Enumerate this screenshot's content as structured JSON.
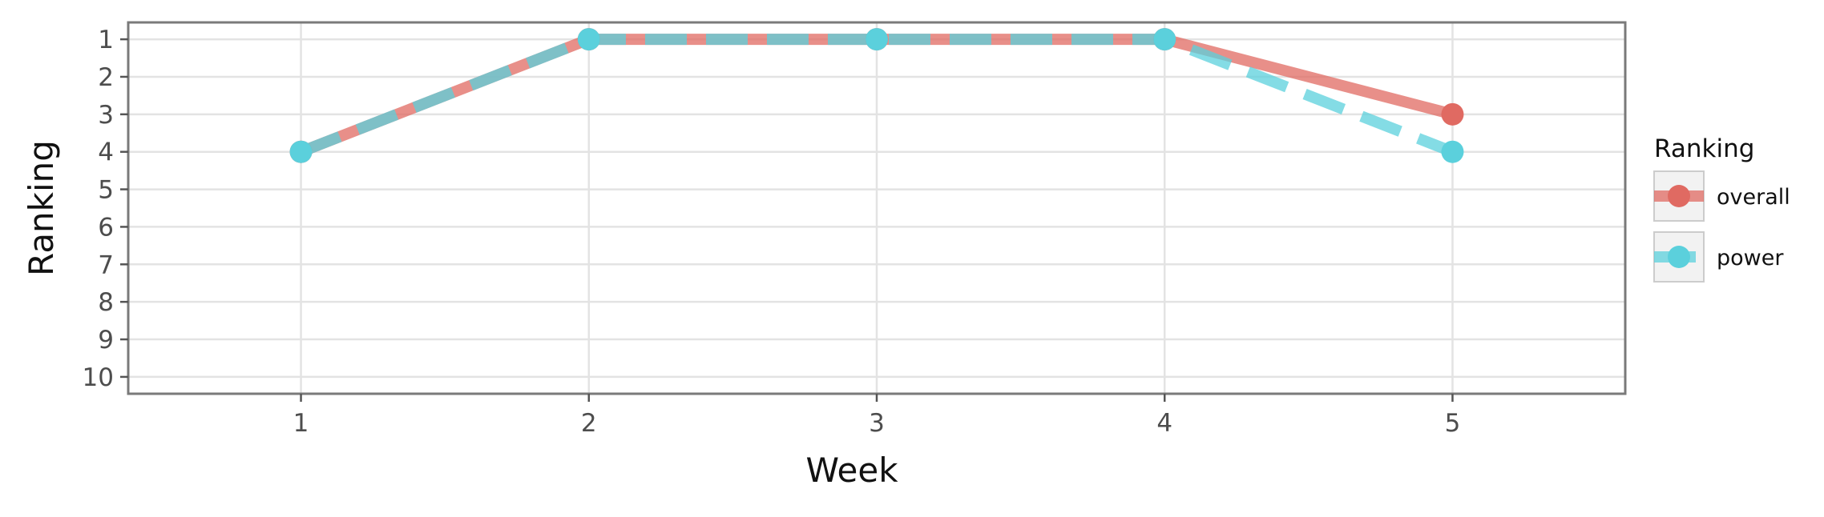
{
  "chart_data": {
    "type": "line",
    "title": "",
    "xlabel": "Week",
    "ylabel": "Ranking",
    "x": [
      1,
      2,
      3,
      4,
      5
    ],
    "x_ticks": [
      "1",
      "2",
      "3",
      "4",
      "5"
    ],
    "xlim": [
      0.4,
      5.6
    ],
    "y_ticks": [
      "1",
      "2",
      "3",
      "4",
      "5",
      "6",
      "7",
      "8",
      "9",
      "10"
    ],
    "ylim": [
      0.55,
      10.45
    ],
    "y_reversed": true,
    "grid": true,
    "legend": {
      "title": "Ranking",
      "position": "right"
    },
    "series": [
      {
        "name": "overall",
        "values": [
          4,
          1,
          1,
          1,
          3
        ],
        "color": "#e06a62",
        "linestyle": "solid"
      },
      {
        "name": "power",
        "values": [
          4,
          1,
          1,
          1,
          4
        ],
        "color": "#5bd0dc",
        "linestyle": "dashed"
      }
    ]
  }
}
